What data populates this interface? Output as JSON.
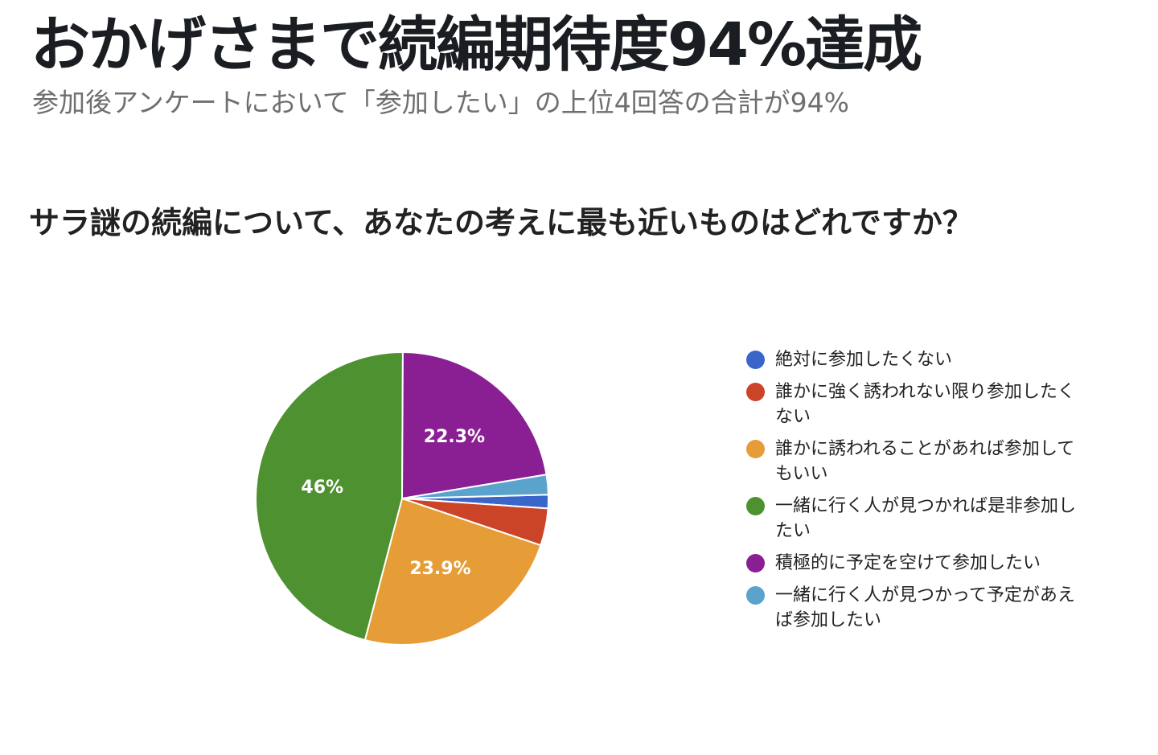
{
  "headline": "おかげさまで続編期待度94%達成",
  "subheadline": "参加後アンケートにおいて「参加したい」の上位4回答の合計が94%",
  "chart_data": {
    "type": "pie",
    "title": "サラ謎の続編について、あなたの考えに最も近いものはどれですか？",
    "legend_position": "right",
    "slices": [
      {
        "label": "絶対に参加したくない",
        "value": 1.5,
        "color": "#3b66c9",
        "data_label": ""
      },
      {
        "label": "誰かに強く誘われない限り参加したくない",
        "value": 4.1,
        "color": "#cc4427",
        "data_label": ""
      },
      {
        "label": "誰かに誘われることがあれば参加してもいい",
        "value": 23.9,
        "color": "#e69c37",
        "data_label": "23.9%"
      },
      {
        "label": "一緒に行く人が見つかれば是非参加したい",
        "value": 46,
        "color": "#4e9130",
        "data_label": "46%"
      },
      {
        "label": "積極的に予定を空けて参加したい",
        "value": 22.3,
        "color": "#8a1f94",
        "data_label": "22.3%"
      },
      {
        "label": "一緒に行く人が見つかって予定があえば参加したい",
        "value": 2.2,
        "color": "#5ba3cc",
        "data_label": ""
      }
    ]
  }
}
